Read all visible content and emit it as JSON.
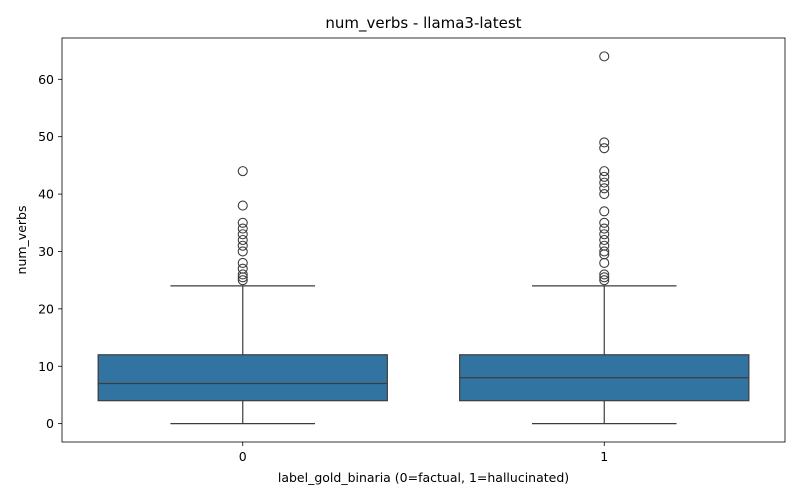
{
  "chart_data": {
    "type": "box",
    "title": "num_verbs - llama3-latest",
    "xlabel": "label_gold_binaria (0=factual, 1=hallucinated)",
    "ylabel": "num_verbs",
    "categories": [
      "0",
      "1"
    ],
    "ylim": [
      -3.2,
      67.2
    ],
    "yticks": [
      0,
      10,
      20,
      30,
      40,
      50,
      60
    ],
    "box_color": "#3274a1",
    "edge_color": "#3d3d3d",
    "grid": false,
    "legend": "none",
    "boxes": [
      {
        "category": "0",
        "whisker_low": 0,
        "q1": 4,
        "median": 7,
        "q3": 12,
        "whisker_high": 24,
        "outliers": [
          25,
          25.5,
          26,
          27,
          28,
          30,
          31,
          32,
          33,
          34,
          35,
          38,
          44
        ]
      },
      {
        "category": "1",
        "whisker_low": 0,
        "q1": 4,
        "median": 8,
        "q3": 12,
        "whisker_high": 24,
        "outliers": [
          25,
          25.5,
          26,
          28,
          29.5,
          30,
          31,
          32,
          33,
          34,
          35,
          37,
          40,
          41,
          42,
          43,
          44,
          48,
          49,
          64
        ]
      }
    ]
  }
}
